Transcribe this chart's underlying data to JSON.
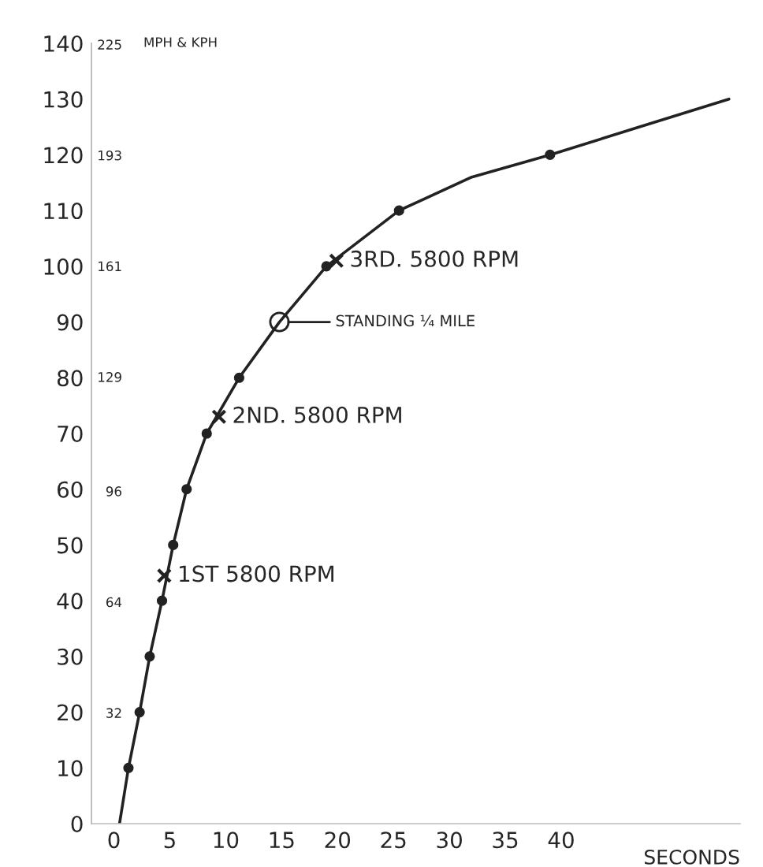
{
  "chart_data": {
    "type": "line",
    "xlabel": "SECONDS",
    "xlim": [
      -2,
      56
    ],
    "xticks": [
      0,
      5,
      10,
      15,
      20,
      25,
      30,
      35,
      40
    ],
    "ylim": [
      0,
      140
    ],
    "yticks": [
      0,
      10,
      20,
      30,
      40,
      50,
      60,
      70,
      80,
      90,
      100,
      110,
      120,
      130,
      140
    ],
    "y2lim": [
      0,
      225.3
    ],
    "y2ticks": [
      32,
      64,
      96,
      129,
      161,
      193,
      225
    ],
    "grid": false,
    "legend": false,
    "series": [
      {
        "marker": "none",
        "color": "#222222",
        "x": [
          0.5,
          1.3,
          2.3,
          3.2,
          4.3,
          5.3,
          6.5,
          8.3,
          11.2,
          14.8,
          19,
          25.5,
          32,
          39,
          47,
          55
        ],
        "values": [
          0,
          10,
          20,
          30,
          40,
          50,
          60,
          70,
          80,
          90,
          100,
          110,
          116,
          120,
          125,
          130
        ]
      },
      {
        "type": "scatter",
        "marker": "circle",
        "color": "#222222",
        "x": [
          1.3,
          2.3,
          3.2,
          4.3,
          5.3,
          6.5,
          8.3,
          11.2,
          19,
          25.5,
          39
        ],
        "values": [
          10,
          20,
          30,
          40,
          50,
          60,
          70,
          80,
          100,
          110,
          120
        ]
      },
      {
        "type": "scatter",
        "marker": "cross",
        "color": "#222222",
        "x": [
          4.5,
          9.4,
          19.9
        ],
        "values": [
          44.5,
          73,
          101
        ]
      },
      {
        "type": "scatter",
        "marker": "circle",
        "color": "#222222",
        "x": [
          14.8
        ],
        "values": [
          90
        ]
      }
    ],
    "annotations": [
      {
        "text": "1ST 5800 RPM",
        "x": 4.5,
        "y": 44.5
      },
      {
        "text": "2ND. 5800 RPM",
        "x": 9.4,
        "y": 73
      },
      {
        "text": "3RD. 5800 RPM",
        "x": 19.9,
        "y": 101
      },
      "STANDING ¼ MILE",
      "MPH & KPH"
    ]
  }
}
